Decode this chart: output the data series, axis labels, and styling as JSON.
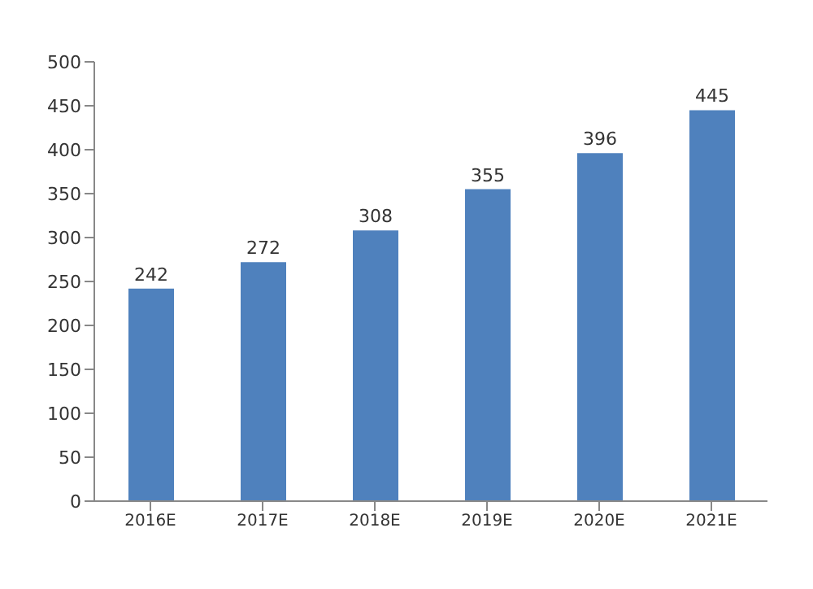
{
  "chart_data": {
    "type": "bar",
    "categories": [
      "2016E",
      "2017E",
      "2018E",
      "2019E",
      "2020E",
      "2021E"
    ],
    "values": [
      242,
      272,
      308,
      355,
      396,
      445
    ],
    "color": "#4f81bd",
    "ylim": [
      0,
      500
    ],
    "yticks": [
      0,
      50,
      100,
      150,
      200,
      250,
      300,
      350,
      400,
      450,
      500
    ],
    "grid": false,
    "data_labels": true
  }
}
